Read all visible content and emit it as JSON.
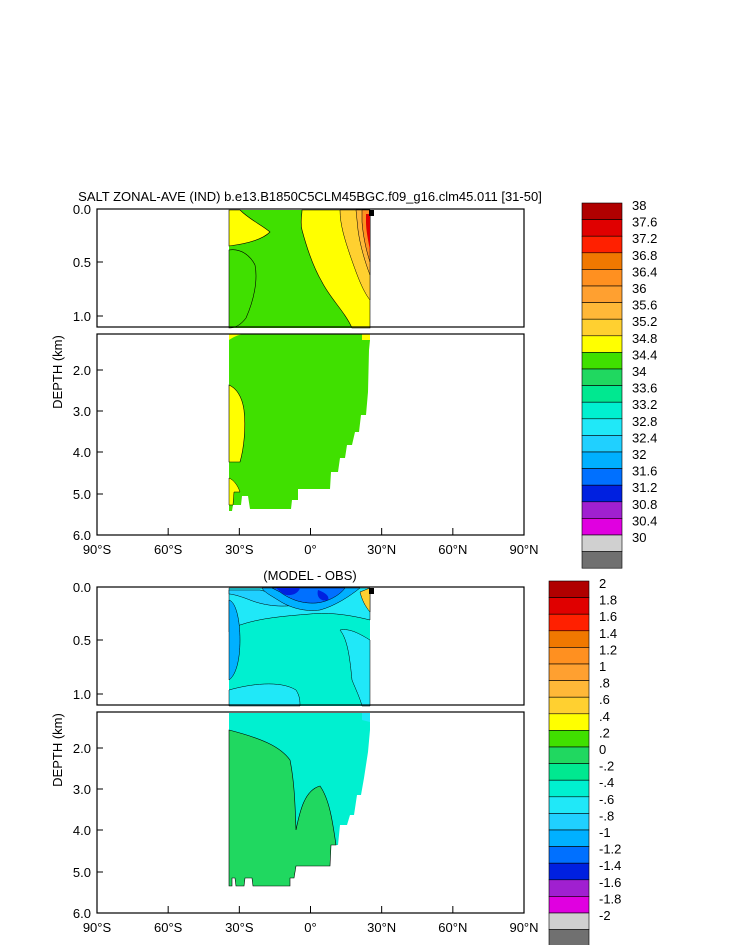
{
  "chart_data": [
    {
      "type": "heatmap",
      "title": "SALT ZONAL-AVE (IND) b.e13.B1850C5CLM45BGC.f09_g16.clm45.011 [31-50]",
      "ylabel": "DEPTH (km)",
      "x_ticks": [
        "90°S",
        "60°S",
        "30°S",
        "0°",
        "30°N",
        "60°N",
        "90°N"
      ],
      "y_ticks_upper": [
        "0.0",
        "0.5",
        "1.0"
      ],
      "y_ticks_lower": [
        "2.0",
        "3.0",
        "4.0",
        "5.0",
        "6.0"
      ],
      "colorbar_levels": [
        "38",
        "37.6",
        "37.2",
        "36.8",
        "36.4",
        "36",
        "35.6",
        "35.2",
        "34.8",
        "34.4",
        "34",
        "33.6",
        "33.2",
        "32.8",
        "32.4",
        "32",
        "31.6",
        "31.2",
        "30.8",
        "30.4",
        "30"
      ],
      "colorbar_colors": [
        "#b00000",
        "#e00000",
        "#ff2000",
        "#f07800",
        "#ff9020",
        "#ffa030",
        "#ffb838",
        "#ffd030",
        "#ffff00",
        "#40e000",
        "#20d860",
        "#00e890",
        "#00f0d0",
        "#20e8f8",
        "#20d0ff",
        "#00b0ff",
        "#0070ff",
        "#0020e0",
        "#a020d0",
        "#e000e0",
        "#d0d0d0",
        "#707070"
      ]
    },
    {
      "type": "heatmap",
      "title": "(MODEL - OBS)",
      "ylabel": "DEPTH (km)",
      "x_ticks": [
        "90°S",
        "60°S",
        "30°S",
        "0°",
        "30°N",
        "60°N",
        "90°N"
      ],
      "y_ticks_upper": [
        "0.0",
        "0.5",
        "1.0"
      ],
      "y_ticks_lower": [
        "2.0",
        "3.0",
        "4.0",
        "5.0",
        "6.0"
      ],
      "colorbar_levels": [
        "2",
        "1.8",
        "1.6",
        "1.4",
        "1.2",
        "1",
        ".8",
        ".6",
        ".4",
        ".2",
        "0",
        "-.2",
        "-.4",
        "-.6",
        "-.8",
        "-1",
        "-1.2",
        "-1.4",
        "-1.6",
        "-1.8",
        "-2"
      ],
      "colorbar_colors": [
        "#b00000",
        "#e00000",
        "#ff2000",
        "#f07800",
        "#ff9020",
        "#ffa030",
        "#ffb838",
        "#ffd030",
        "#ffff00",
        "#40e000",
        "#20d860",
        "#00e890",
        "#00f0d0",
        "#20e8f8",
        "#20d0ff",
        "#00b0ff",
        "#0070ff",
        "#0020e0",
        "#a020d0",
        "#e000e0",
        "#d0d0d0",
        "#707070"
      ]
    }
  ]
}
